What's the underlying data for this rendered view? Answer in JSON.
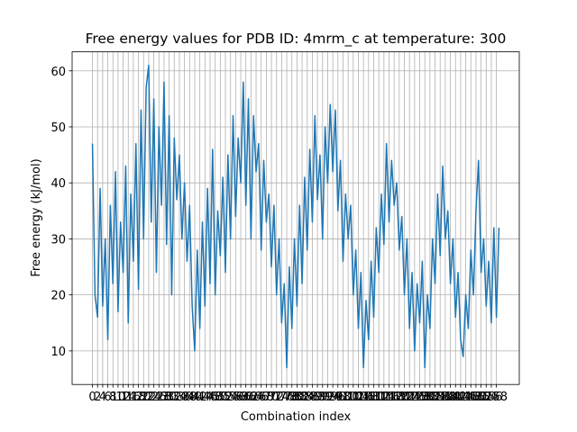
{
  "chart_data": {
    "type": "line",
    "title": "Free energy values for PDB ID: 4mrm_c at temperature: 300",
    "xlabel": "Combination index",
    "ylabel": "Free energy (kJ/mol)",
    "color": "#1f77b4",
    "grid": true,
    "values": [
      47,
      20,
      16,
      39,
      18,
      30,
      12,
      36,
      22,
      42,
      17,
      33,
      24,
      43,
      15,
      38,
      26,
      47,
      21,
      53,
      30,
      57,
      61,
      33,
      55,
      24,
      50,
      36,
      58,
      29,
      52,
      20,
      48,
      37,
      45,
      30,
      40,
      26,
      36,
      18,
      10,
      28,
      14,
      33,
      18,
      39,
      22,
      46,
      20,
      35,
      27,
      41,
      24,
      45,
      30,
      52,
      34,
      48,
      40,
      58,
      36,
      55,
      30,
      52,
      42,
      47,
      28,
      44,
      33,
      38,
      25,
      36,
      20,
      30,
      15,
      22,
      7,
      25,
      14,
      30,
      18,
      36,
      22,
      41,
      28,
      46,
      33,
      52,
      37,
      45,
      30,
      50,
      40,
      54,
      42,
      53,
      35,
      44,
      26,
      38,
      30,
      36,
      20,
      28,
      14,
      24,
      7,
      19,
      12,
      26,
      16,
      32,
      24,
      38,
      29,
      47,
      33,
      44,
      36,
      40,
      28,
      34,
      20,
      30,
      14,
      24,
      10,
      22,
      15,
      26,
      7,
      20,
      14,
      30,
      22,
      38,
      27,
      43,
      30,
      35,
      22,
      30,
      16,
      24,
      12,
      9,
      20,
      14,
      28,
      20,
      35,
      44,
      24,
      30,
      18,
      26,
      15,
      32,
      16,
      32
    ],
    "xlim": [
      -7.95,
      166.95
    ],
    "xticks": [
      0,
      2,
      4,
      6,
      8,
      10,
      12,
      14,
      16,
      18,
      20,
      22,
      24,
      26,
      28,
      30,
      32,
      34,
      36,
      38,
      40,
      42,
      44,
      46,
      48,
      50,
      52,
      54,
      56,
      58,
      60,
      62,
      64,
      66,
      68,
      70,
      72,
      74,
      76,
      78,
      80,
      82,
      84,
      86,
      88,
      90,
      92,
      94,
      96,
      98,
      100,
      102,
      104,
      106,
      108,
      110,
      112,
      114,
      116,
      118,
      120,
      122,
      124,
      126,
      128,
      130,
      132,
      134,
      136,
      138,
      140,
      142,
      144,
      146,
      148,
      150,
      152,
      154,
      156,
      158
    ],
    "ylim": [
      4.0,
      63.4
    ],
    "yticks": [
      10,
      20,
      30,
      40,
      50,
      60
    ]
  }
}
